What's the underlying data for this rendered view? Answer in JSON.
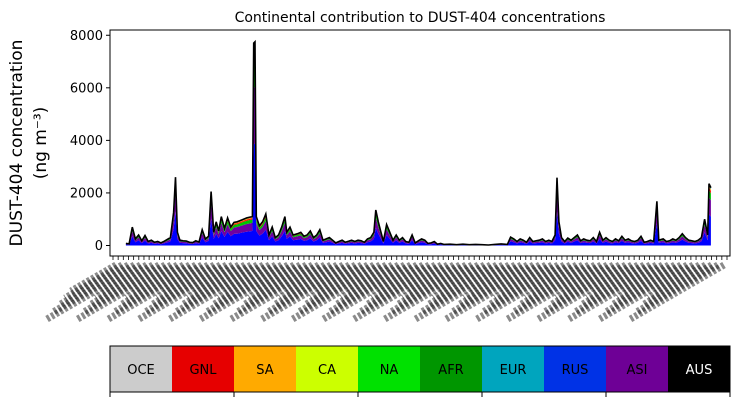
{
  "chart_data": {
    "type": "area",
    "title": "Continental contribution to DUST-404 concentrations",
    "ylabel_line1": "DUST-404 concentration",
    "ylabel_line2": "(ng m⁻³)",
    "xlabel": "",
    "ylim": [
      -400,
      8200
    ],
    "yticks": [
      0,
      2000,
      4000,
      6000,
      8000
    ],
    "grid": false,
    "x_tick_labels_note": "dense rotated date tick labels, illegible",
    "total": [
      [
        0,
        80
      ],
      [
        0.5,
        60
      ],
      [
        1,
        700
      ],
      [
        1.5,
        250
      ],
      [
        2,
        400
      ],
      [
        2.5,
        180
      ],
      [
        3,
        380
      ],
      [
        3.5,
        150
      ],
      [
        4,
        200
      ],
      [
        4.5,
        120
      ],
      [
        5,
        150
      ],
      [
        5.5,
        100
      ],
      [
        6,
        160
      ],
      [
        7,
        300
      ],
      [
        7.5,
        1250
      ],
      [
        7.8,
        2600
      ],
      [
        8.1,
        500
      ],
      [
        8.5,
        200
      ],
      [
        9,
        180
      ],
      [
        9.5,
        170
      ],
      [
        10,
        120
      ],
      [
        10.5,
        110
      ],
      [
        11,
        180
      ],
      [
        11.5,
        130
      ],
      [
        12,
        600
      ],
      [
        12.5,
        250
      ],
      [
        13,
        350
      ],
      [
        13.4,
        2050
      ],
      [
        13.8,
        500
      ],
      [
        14.2,
        900
      ],
      [
        14.6,
        550
      ],
      [
        15,
        1100
      ],
      [
        15.5,
        650
      ],
      [
        16,
        1050
      ],
      [
        16.5,
        700
      ],
      [
        17,
        880
      ],
      [
        17.5,
        900
      ],
      [
        18,
        950
      ],
      [
        18.5,
        1000
      ],
      [
        19,
        1050
      ],
      [
        19.5,
        1080
      ],
      [
        19.9,
        1100
      ],
      [
        20.1,
        7700
      ],
      [
        20.3,
        7750
      ],
      [
        20.5,
        1100
      ],
      [
        21,
        750
      ],
      [
        21.5,
        900
      ],
      [
        22,
        1200
      ],
      [
        22.5,
        400
      ],
      [
        23,
        700
      ],
      [
        23.5,
        300
      ],
      [
        24,
        400
      ],
      [
        24.5,
        700
      ],
      [
        25,
        1100
      ],
      [
        25.3,
        500
      ],
      [
        25.8,
        700
      ],
      [
        26.3,
        400
      ],
      [
        27,
        450
      ],
      [
        27.5,
        500
      ],
      [
        28,
        350
      ],
      [
        28.5,
        400
      ],
      [
        29,
        550
      ],
      [
        29.5,
        300
      ],
      [
        30,
        400
      ],
      [
        30.5,
        600
      ],
      [
        31,
        200
      ],
      [
        31.5,
        250
      ],
      [
        32,
        300
      ],
      [
        32.5,
        200
      ],
      [
        33,
        100
      ],
      [
        33.5,
        150
      ],
      [
        34,
        200
      ],
      [
        34.5,
        120
      ],
      [
        35,
        160
      ],
      [
        35.5,
        200
      ],
      [
        36,
        150
      ],
      [
        36.5,
        200
      ],
      [
        37,
        180
      ],
      [
        37.5,
        120
      ],
      [
        38,
        250
      ],
      [
        38.5,
        300
      ],
      [
        39,
        500
      ],
      [
        39.3,
        1350
      ],
      [
        39.7,
        900
      ],
      [
        40,
        600
      ],
      [
        40.5,
        150
      ],
      [
        41,
        800
      ],
      [
        41.5,
        500
      ],
      [
        42,
        200
      ],
      [
        42.5,
        400
      ],
      [
        43,
        200
      ],
      [
        43.5,
        300
      ],
      [
        44,
        150
      ],
      [
        44.5,
        120
      ],
      [
        45,
        400
      ],
      [
        45.5,
        100
      ],
      [
        46,
        180
      ],
      [
        46.5,
        250
      ],
      [
        47,
        200
      ],
      [
        47.5,
        80
      ],
      [
        48,
        100
      ],
      [
        48.5,
        150
      ],
      [
        49,
        50
      ],
      [
        49.5,
        80
      ],
      [
        50,
        40
      ],
      [
        51,
        50
      ],
      [
        52,
        30
      ],
      [
        53,
        50
      ],
      [
        54,
        30
      ],
      [
        55,
        40
      ],
      [
        56,
        30
      ],
      [
        57,
        20
      ],
      [
        58,
        40
      ],
      [
        59,
        60
      ],
      [
        60,
        40
      ],
      [
        60.5,
        320
      ],
      [
        61,
        250
      ],
      [
        61.5,
        150
      ],
      [
        62,
        250
      ],
      [
        62.5,
        200
      ],
      [
        63,
        120
      ],
      [
        63.5,
        300
      ],
      [
        64,
        150
      ],
      [
        64.5,
        180
      ],
      [
        65,
        200
      ],
      [
        65.5,
        250
      ],
      [
        66,
        150
      ],
      [
        66.5,
        200
      ],
      [
        67,
        150
      ],
      [
        67.5,
        400
      ],
      [
        67.8,
        2580
      ],
      [
        68.1,
        900
      ],
      [
        68.5,
        300
      ],
      [
        69,
        150
      ],
      [
        69.5,
        280
      ],
      [
        70,
        200
      ],
      [
        70.5,
        300
      ],
      [
        71,
        400
      ],
      [
        71.5,
        180
      ],
      [
        72,
        250
      ],
      [
        72.5,
        200
      ],
      [
        73,
        180
      ],
      [
        73.5,
        300
      ],
      [
        74,
        150
      ],
      [
        74.5,
        500
      ],
      [
        75,
        200
      ],
      [
        75.5,
        300
      ],
      [
        76,
        200
      ],
      [
        76.5,
        150
      ],
      [
        77,
        250
      ],
      [
        77.5,
        180
      ],
      [
        78,
        350
      ],
      [
        78.5,
        200
      ],
      [
        79,
        250
      ],
      [
        79.5,
        180
      ],
      [
        80,
        150
      ],
      [
        80.5,
        200
      ],
      [
        81,
        350
      ],
      [
        81.5,
        120
      ],
      [
        82,
        150
      ],
      [
        82.5,
        200
      ],
      [
        83,
        150
      ],
      [
        83.5,
        1680
      ],
      [
        83.8,
        200
      ],
      [
        84.5,
        250
      ],
      [
        85,
        150
      ],
      [
        85.5,
        180
      ],
      [
        86,
        250
      ],
      [
        86.5,
        200
      ],
      [
        87,
        300
      ],
      [
        87.5,
        450
      ],
      [
        88,
        300
      ],
      [
        88.5,
        200
      ],
      [
        89,
        180
      ],
      [
        89.5,
        150
      ],
      [
        90,
        200
      ],
      [
        90.5,
        300
      ],
      [
        91,
        1000
      ],
      [
        91.5,
        400
      ],
      [
        91.7,
        2350
      ],
      [
        92,
        2200
      ]
    ],
    "series": [
      {
        "color": "#0000ff",
        "fraction": 0.5
      },
      {
        "color": "#7000a0",
        "fraction": 0.28
      },
      {
        "color": "#00c400",
        "fraction": 0.12
      },
      {
        "color": "#ff0000",
        "fraction": 0.04
      },
      {
        "color": "#ffa500",
        "fraction": 0.03
      },
      {
        "color": "#00a3b4",
        "fraction": 0.03
      }
    ],
    "colorbar": [
      {
        "label": "OCE",
        "color": "#cccccc",
        "text_color": "#000000"
      },
      {
        "label": "GNL",
        "color": "#e60000",
        "text_color": "#000000"
      },
      {
        "label": "SA",
        "color": "#ffaa00",
        "text_color": "#000000"
      },
      {
        "label": "CA",
        "color": "#ccff00",
        "text_color": "#000000"
      },
      {
        "label": "NA",
        "color": "#00e100",
        "text_color": "#000000"
      },
      {
        "label": "AFR",
        "color": "#009600",
        "text_color": "#000000"
      },
      {
        "label": "EUR",
        "color": "#00a5be",
        "text_color": "#000000"
      },
      {
        "label": "RUS",
        "color": "#0032e6",
        "text_color": "#000000"
      },
      {
        "label": "ASI",
        "color": "#6e0096",
        "text_color": "#000000"
      },
      {
        "label": "AUS",
        "color": "#000000",
        "text_color": "#ffffff"
      }
    ]
  }
}
